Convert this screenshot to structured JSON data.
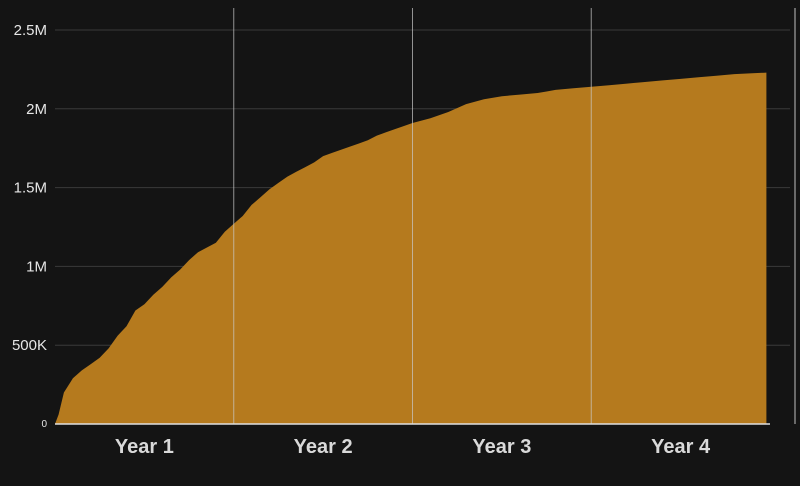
{
  "chart_data": {
    "type": "area",
    "title": "",
    "xlabel": "",
    "ylabel": "",
    "categories": [
      "Year 1",
      "Year 2",
      "Year 3",
      "Year 4"
    ],
    "y_ticks": [
      {
        "value": 0,
        "label": "0"
      },
      {
        "value": 500000,
        "label": "500K"
      },
      {
        "value": 1000000,
        "label": "1M"
      },
      {
        "value": 1500000,
        "label": "1.5M"
      },
      {
        "value": 2000000,
        "label": "2M"
      },
      {
        "value": 2500000,
        "label": "2.5M"
      }
    ],
    "ylim": [
      0,
      2500000
    ],
    "xlim": [
      0,
      4
    ],
    "grid": true,
    "colors": {
      "area": "#b57a1e",
      "background": "#141414",
      "grid": "#3a3a3a",
      "year_divider": "#c9c9c9"
    },
    "series": [
      {
        "x": [
          0.0,
          0.02,
          0.05,
          0.1,
          0.15,
          0.2,
          0.25,
          0.3,
          0.35,
          0.4,
          0.45,
          0.5,
          0.55,
          0.6,
          0.65,
          0.7,
          0.75,
          0.8,
          0.85,
          0.9,
          0.95,
          1.0,
          1.05,
          1.1,
          1.15,
          1.2,
          1.25,
          1.3,
          1.35,
          1.4,
          1.45,
          1.5,
          1.55,
          1.6,
          1.65,
          1.7,
          1.75,
          1.8,
          1.85,
          1.9,
          1.95,
          2.0,
          2.1,
          2.2,
          2.3,
          2.4,
          2.5,
          2.6,
          2.7,
          2.75,
          2.8,
          2.9,
          3.0,
          3.1,
          3.2,
          3.3,
          3.4,
          3.5,
          3.6,
          3.7,
          3.8,
          3.9,
          3.98
        ],
        "values": [
          0,
          60000,
          200000,
          290000,
          340000,
          380000,
          420000,
          480000,
          560000,
          620000,
          720000,
          760000,
          820000,
          870000,
          930000,
          980000,
          1040000,
          1090000,
          1120000,
          1150000,
          1220000,
          1270000,
          1320000,
          1390000,
          1440000,
          1490000,
          1530000,
          1570000,
          1600000,
          1630000,
          1660000,
          1700000,
          1720000,
          1740000,
          1760000,
          1780000,
          1800000,
          1830000,
          1850000,
          1870000,
          1890000,
          1910000,
          1940000,
          1980000,
          2030000,
          2060000,
          2080000,
          2090000,
          2100000,
          2110000,
          2120000,
          2130000,
          2140000,
          2150000,
          2160000,
          2170000,
          2180000,
          2190000,
          2200000,
          2210000,
          2220000,
          2225000,
          2230000
        ]
      }
    ]
  }
}
